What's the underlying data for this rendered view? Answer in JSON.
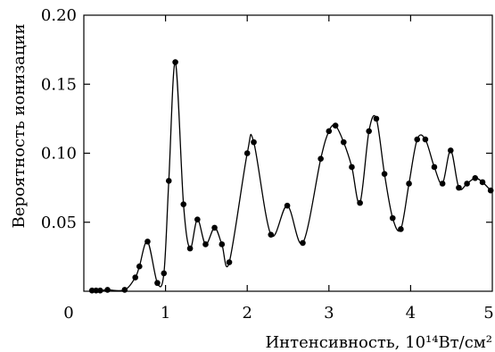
{
  "chart_data": {
    "type": "scatter",
    "xlabel": "Интенсивность, 10¹⁴Вт/см²",
    "ylabel": "Вероятность ионизации",
    "xlim": [
      0,
      5
    ],
    "ylim": [
      0,
      0.2
    ],
    "x_ticks": [
      {
        "value": 0,
        "label": "0"
      },
      {
        "value": 1,
        "label": "1"
      },
      {
        "value": 2,
        "label": "2"
      },
      {
        "value": 3,
        "label": "3"
      },
      {
        "value": 4,
        "label": "4"
      },
      {
        "value": 5,
        "label": "5"
      }
    ],
    "y_ticks": [
      {
        "value": 0.05,
        "label": "0.05"
      },
      {
        "value": 0.1,
        "label": "0.10"
      },
      {
        "value": 0.15,
        "label": "0.15"
      },
      {
        "value": 0.2,
        "label": "0.20"
      }
    ],
    "grid": false,
    "series": [
      {
        "style": "markers+curve",
        "points": [
          [
            0.1,
            0.0005
          ],
          [
            0.15,
            0.0005
          ],
          [
            0.2,
            0.0005
          ],
          [
            0.29,
            0.001
          ],
          [
            0.5,
            0.001
          ],
          [
            0.63,
            0.01
          ],
          [
            0.68,
            0.018
          ],
          [
            0.78,
            0.036
          ],
          [
            0.9,
            0.006
          ],
          [
            0.98,
            0.013
          ],
          [
            1.04,
            0.08
          ],
          [
            1.12,
            0.166
          ],
          [
            1.22,
            0.063
          ],
          [
            1.3,
            0.031
          ],
          [
            1.39,
            0.052
          ],
          [
            1.49,
            0.034
          ],
          [
            1.6,
            0.046
          ],
          [
            1.69,
            0.034
          ],
          [
            1.78,
            0.021
          ],
          [
            2.0,
            0.1
          ],
          [
            2.08,
            0.108
          ],
          [
            2.29,
            0.041
          ],
          [
            2.49,
            0.062
          ],
          [
            2.68,
            0.035
          ],
          [
            2.9,
            0.096
          ],
          [
            3.0,
            0.116
          ],
          [
            3.08,
            0.12
          ],
          [
            3.18,
            0.108
          ],
          [
            3.28,
            0.09
          ],
          [
            3.38,
            0.064
          ],
          [
            3.49,
            0.116
          ],
          [
            3.58,
            0.125
          ],
          [
            3.68,
            0.085
          ],
          [
            3.78,
            0.053
          ],
          [
            3.88,
            0.045
          ],
          [
            3.98,
            0.078
          ],
          [
            4.08,
            0.11
          ],
          [
            4.18,
            0.11
          ],
          [
            4.29,
            0.09
          ],
          [
            4.39,
            0.078
          ],
          [
            4.49,
            0.102
          ],
          [
            4.59,
            0.075
          ],
          [
            4.69,
            0.078
          ],
          [
            4.79,
            0.082
          ],
          [
            4.88,
            0.079
          ],
          [
            4.98,
            0.073
          ]
        ]
      }
    ]
  }
}
